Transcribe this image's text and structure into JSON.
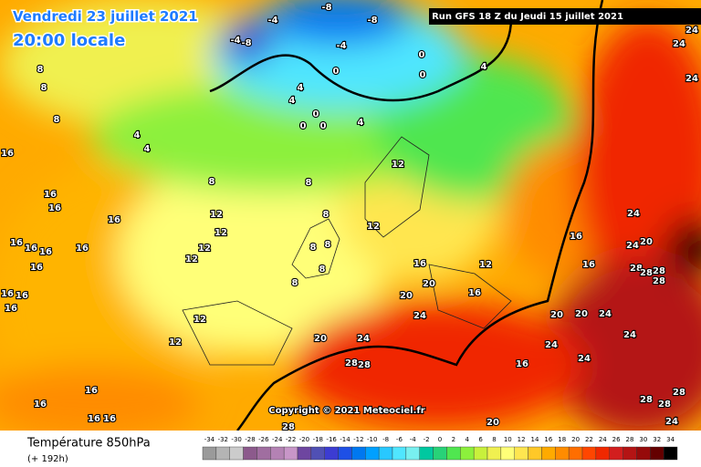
{
  "header": {
    "date": "Vendredi 23 juillet 2021",
    "time": "20:00 locale",
    "run": "Run GFS 18 Z du Jeudi 15 juillet 2021"
  },
  "copyright": "Copyright © 2021 Meteociel.fr",
  "footer": {
    "title": "Température 850hPa",
    "lead": "(+ 192h)"
  },
  "scale": {
    "labels": [
      "-34",
      "-32",
      "-30",
      "-28",
      "-26",
      "-24",
      "-22",
      "-20",
      "-18",
      "-16",
      "-14",
      "-12",
      "-10",
      "-8",
      "-6",
      "-4",
      "-2",
      "0",
      "2",
      "4",
      "6",
      "8",
      "10",
      "12",
      "14",
      "16",
      "18",
      "20",
      "22",
      "24",
      "26",
      "28",
      "30",
      "32",
      "34"
    ],
    "colors": [
      "#9a9a9a",
      "#b4b4b4",
      "#cccccc",
      "#8c5a8c",
      "#a06ea0",
      "#b482b4",
      "#c896c8",
      "#6e46a0",
      "#5050b4",
      "#3c3cd2",
      "#1e50e6",
      "#0078f0",
      "#00a0ff",
      "#28c8ff",
      "#50e6ff",
      "#78f0f0",
      "#00c8a0",
      "#28d278",
      "#50e650",
      "#8cf03c",
      "#c8f03c",
      "#f0f050",
      "#ffff78",
      "#ffe650",
      "#ffc828",
      "#ffaa00",
      "#ff8c00",
      "#ff6e00",
      "#ff4600",
      "#f02800",
      "#d21e1e",
      "#b41414",
      "#960a0a",
      "#640000",
      "#000000"
    ]
  },
  "map_labels": [
    "-8",
    "-8",
    "-4",
    "-4",
    "-8",
    "-4",
    "0",
    "0",
    "0",
    "4",
    "4",
    "4",
    "0",
    "0",
    "0",
    "4",
    "8",
    "8",
    "8",
    "4",
    "4",
    "8",
    "8",
    "12",
    "16",
    "16",
    "16",
    "16",
    "12",
    "12",
    "12",
    "12",
    "16",
    "16",
    "16",
    "16",
    "16",
    "12",
    "8",
    "8",
    "8",
    "8",
    "8",
    "12",
    "16",
    "16",
    "24",
    "24",
    "20",
    "28",
    "28",
    "28",
    "28",
    "16",
    "16",
    "20",
    "20",
    "20",
    "20",
    "24",
    "24",
    "24",
    "24",
    "24",
    "16",
    "20",
    "24",
    "28",
    "28",
    "12",
    "12",
    "16",
    "16",
    "16",
    "16",
    "16",
    "16",
    "16",
    "28",
    "28",
    "28",
    "24",
    "20",
    "28",
    "24",
    "24",
    "24"
  ]
}
